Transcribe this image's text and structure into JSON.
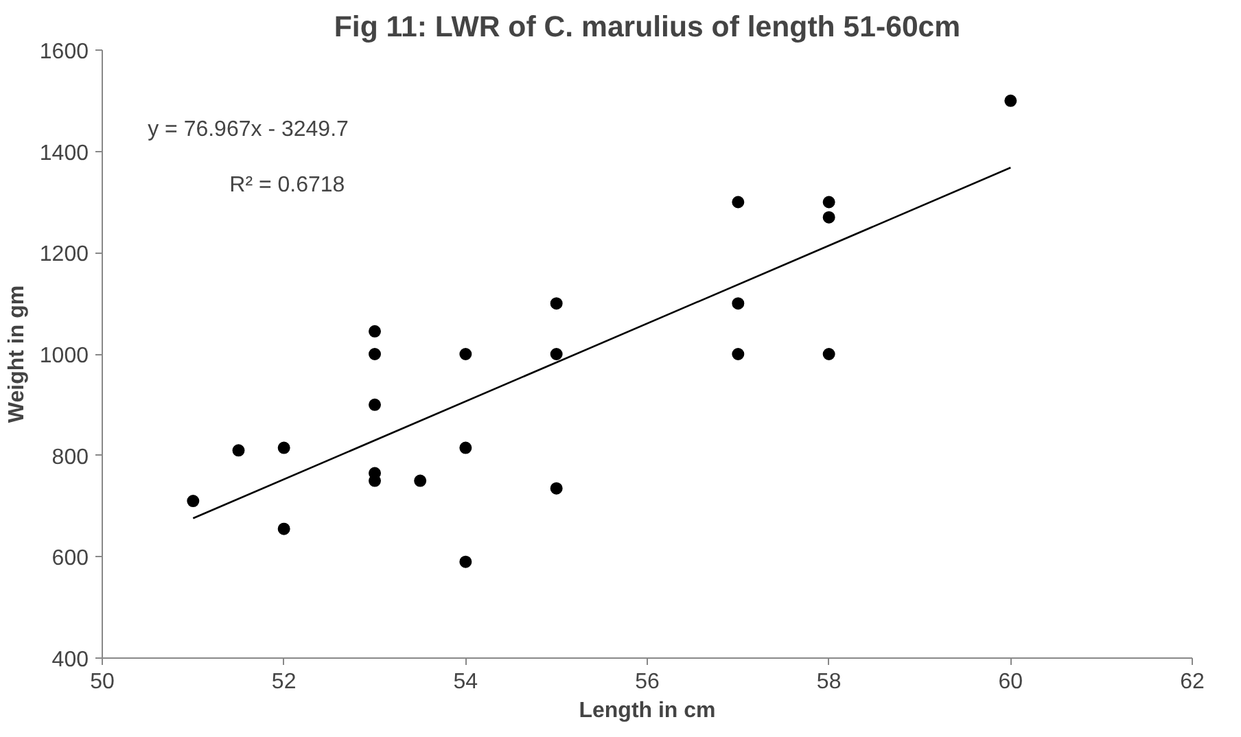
{
  "chart_data": {
    "type": "scatter",
    "title": "Fig 11: LWR of C. marulius of length 51-60cm",
    "xlabel": "Length in cm",
    "ylabel": "Weight in gm",
    "xlim": [
      50,
      62
    ],
    "xticks": [
      50,
      52,
      54,
      56,
      58,
      60,
      62
    ],
    "ylim": [
      400,
      1600
    ],
    "yticks": [
      400,
      600,
      800,
      1000,
      1200,
      1400,
      1600
    ],
    "grid": false,
    "series": [
      {
        "color": "#000000",
        "marker": "circle",
        "x": [
          51,
          51.5,
          52,
          52,
          53,
          53,
          53,
          53,
          53,
          53.5,
          54,
          54,
          54,
          55,
          55,
          55,
          57,
          57,
          57,
          58,
          58,
          58,
          60
        ],
        "values": [
          710,
          810,
          815,
          655,
          1045,
          1000,
          900,
          765,
          750,
          750,
          1000,
          815,
          590,
          1100,
          1000,
          735,
          1300,
          1100,
          1000,
          1300,
          1270,
          1000,
          1500
        ]
      },
      {
        "type": "line",
        "color": "#000000",
        "x": [
          51,
          60
        ],
        "values": [
          676,
          1368
        ]
      }
    ],
    "annotations": [
      "y = 76.967x - 3249.7",
      "R² = 0.6718"
    ]
  }
}
